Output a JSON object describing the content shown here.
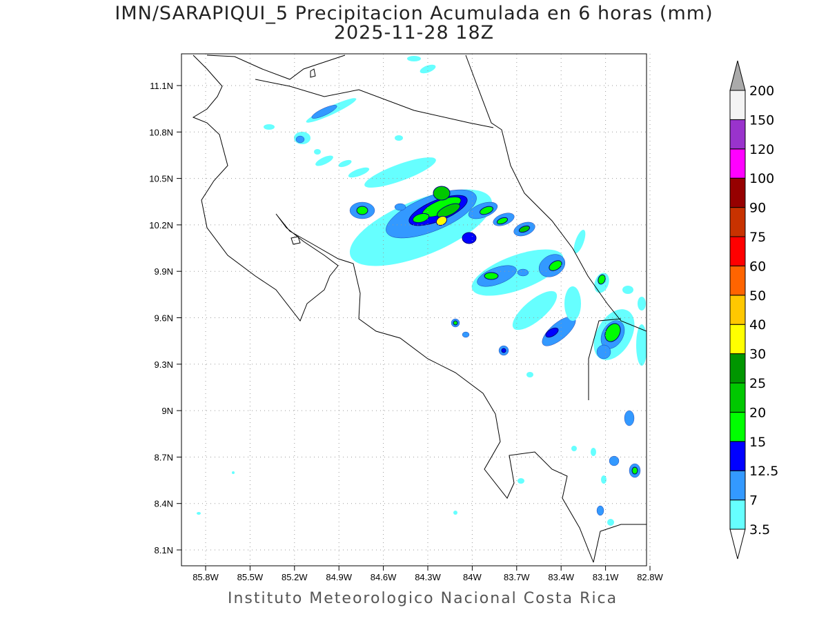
{
  "title": "IMN/SARAPIQUI_5 Precipitacion Acumulada en 6 horas (mm)",
  "subtitle": "2025-11-28 18Z",
  "footer": "Instituto Meteorologico Nacional Costa Rica",
  "lon_ticks": [
    "85.8W",
    "85.5W",
    "85.2W",
    "84.9W",
    "84.6W",
    "84.3W",
    "84W",
    "83.7W",
    "83.4W",
    "83.1W",
    "82.8W"
  ],
  "lat_ticks": [
    "11.1N",
    "10.8N",
    "10.5N",
    "10.2N",
    "9.9N",
    "9.6N",
    "9.3N",
    "9N",
    "8.7N",
    "8.4N",
    "8.1N"
  ],
  "colorbar": {
    "levels": [
      "3.5",
      "7",
      "12.5",
      "15",
      "20",
      "25",
      "30",
      "40",
      "50",
      "60",
      "75",
      "90",
      "100",
      "120",
      "150",
      "200"
    ],
    "colors": [
      "#66ffff",
      "#3399ff",
      "#0000ff",
      "#00ff00",
      "#00c800",
      "#009600",
      "#ffff00",
      "#ffc800",
      "#ff6400",
      "#ff0000",
      "#c83200",
      "#960000",
      "#ff00ff",
      "#9933cc",
      "#f4f4f4"
    ],
    "over_color": "#aaaaaa"
  }
}
